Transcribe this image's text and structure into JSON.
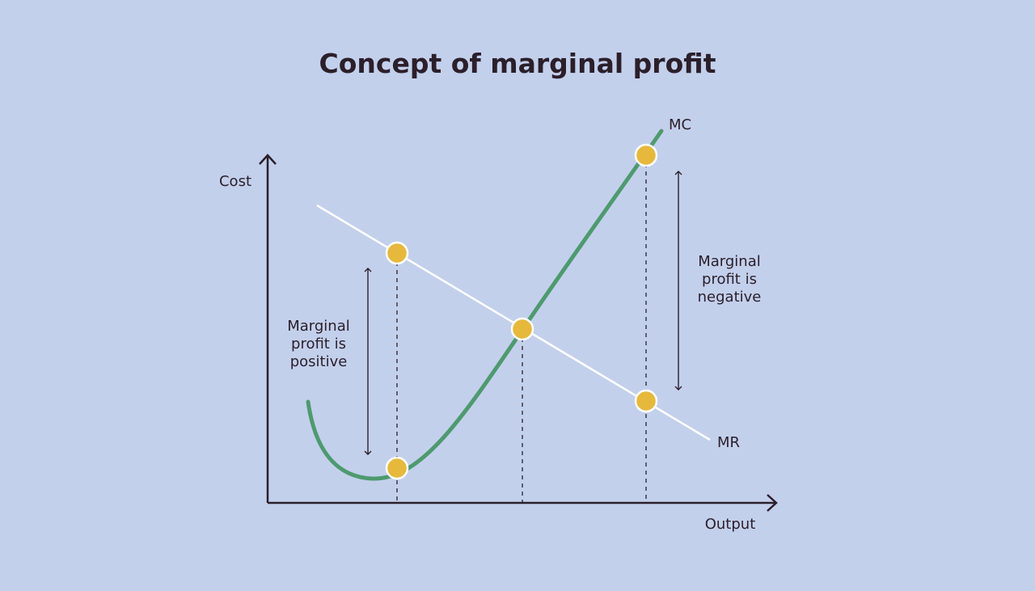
{
  "title": "Concept of marginal profit",
  "axes": {
    "y_label": "Cost",
    "x_label": "Output"
  },
  "curves": {
    "mc_label": "MC",
    "mr_label": "MR",
    "mc_color": "#4e9a6f",
    "mr_color": "#ffffff"
  },
  "annotations": {
    "positive": [
      "Marginal",
      "profit is",
      "positive"
    ],
    "negative": [
      "Marginal",
      "profit is",
      "negative"
    ]
  },
  "colors": {
    "background": "#c3d0ec",
    "text": "#2b1f2a",
    "point_fill": "#e6b83c",
    "point_stroke": "#ffffff"
  }
}
